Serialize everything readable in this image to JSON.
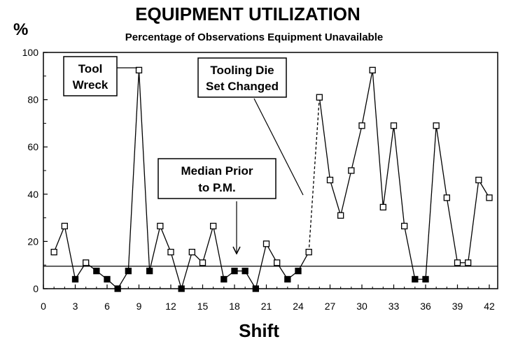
{
  "chart_data": {
    "type": "line",
    "title": "EQUIPMENT UTILIZATION",
    "subtitle": "Percentage of Observations Equipment Unavailable",
    "ylabel": "%",
    "xlabel": "Shift",
    "xlim": [
      0,
      43
    ],
    "ylim": [
      0,
      100
    ],
    "x_ticks": [
      0,
      3,
      6,
      9,
      12,
      15,
      18,
      21,
      24,
      27,
      30,
      33,
      36,
      39,
      42
    ],
    "y_ticks": [
      0,
      20,
      40,
      60,
      80,
      100
    ],
    "median_line": 9.5,
    "series": [
      {
        "name": "",
        "points": [
          {
            "x": 1,
            "y": 15.5,
            "marker": "open"
          },
          {
            "x": 2,
            "y": 26.5,
            "marker": "open"
          },
          {
            "x": 3,
            "y": 4,
            "marker": "filled"
          },
          {
            "x": 4,
            "y": 11,
            "marker": "open"
          },
          {
            "x": 5,
            "y": 7.5,
            "marker": "filled"
          },
          {
            "x": 6,
            "y": 4,
            "marker": "filled"
          },
          {
            "x": 7,
            "y": 0,
            "marker": "filled"
          },
          {
            "x": 8,
            "y": 7.5,
            "marker": "filled"
          },
          {
            "x": 9,
            "y": 92.5,
            "marker": "open"
          },
          {
            "x": 10,
            "y": 7.5,
            "marker": "filled"
          },
          {
            "x": 11,
            "y": 26.5,
            "marker": "open"
          },
          {
            "x": 12,
            "y": 15.5,
            "marker": "open"
          },
          {
            "x": 13,
            "y": 0,
            "marker": "filled"
          },
          {
            "x": 14,
            "y": 15.5,
            "marker": "open"
          },
          {
            "x": 15,
            "y": 11,
            "marker": "open"
          },
          {
            "x": 16,
            "y": 26.5,
            "marker": "open"
          },
          {
            "x": 17,
            "y": 4,
            "marker": "filled"
          },
          {
            "x": 18,
            "y": 7.5,
            "marker": "filled"
          },
          {
            "x": 19,
            "y": 7.5,
            "marker": "filled"
          },
          {
            "x": 20,
            "y": 0,
            "marker": "filled"
          },
          {
            "x": 21,
            "y": 19,
            "marker": "open"
          },
          {
            "x": 22,
            "y": 11,
            "marker": "open"
          },
          {
            "x": 23,
            "y": 4,
            "marker": "filled"
          },
          {
            "x": 24,
            "y": 7.5,
            "marker": "filled"
          },
          {
            "x": 25,
            "y": 15.5,
            "marker": "open"
          },
          {
            "x": 26,
            "y": 81,
            "marker": "open",
            "dashed_from_prev": true
          },
          {
            "x": 27,
            "y": 46,
            "marker": "open"
          },
          {
            "x": 28,
            "y": 31,
            "marker": "open"
          },
          {
            "x": 29,
            "y": 50,
            "marker": "open"
          },
          {
            "x": 30,
            "y": 69,
            "marker": "open"
          },
          {
            "x": 31,
            "y": 92.5,
            "marker": "open"
          },
          {
            "x": 32,
            "y": 34.5,
            "marker": "open"
          },
          {
            "x": 33,
            "y": 69,
            "marker": "open"
          },
          {
            "x": 34,
            "y": 26.5,
            "marker": "open"
          },
          {
            "x": 35,
            "y": 4,
            "marker": "filled"
          },
          {
            "x": 36,
            "y": 4,
            "marker": "filled"
          },
          {
            "x": 37,
            "y": 69,
            "marker": "open"
          },
          {
            "x": 38,
            "y": 38.5,
            "marker": "open"
          },
          {
            "x": 39,
            "y": 11,
            "marker": "open"
          },
          {
            "x": 40,
            "y": 11,
            "marker": "open"
          },
          {
            "x": 41,
            "y": 46,
            "marker": "open"
          },
          {
            "x": 42,
            "y": 38.5,
            "marker": "open"
          }
        ]
      }
    ],
    "annotations": [
      {
        "lines": [
          "Tool",
          "Wreck"
        ],
        "points_to_x": 9
      },
      {
        "lines": [
          "Tooling Die",
          "Set Changed"
        ],
        "points_to_x": 25.5
      },
      {
        "lines": [
          "Median Prior",
          "to P.M."
        ],
        "points_to_x": 18.5
      }
    ],
    "grid": false,
    "legend": "none"
  }
}
